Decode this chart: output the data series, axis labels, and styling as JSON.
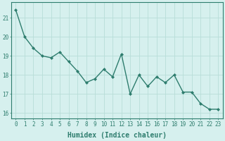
{
  "xlabel": "Humidex (Indice chaleur)",
  "ylabel": "",
  "x_values": [
    0,
    1,
    2,
    3,
    4,
    5,
    6,
    7,
    8,
    9,
    10,
    11,
    12,
    13,
    14,
    15,
    16,
    17,
    18,
    19,
    20,
    21,
    22,
    23
  ],
  "y_values": [
    21.4,
    20.0,
    19.4,
    19.0,
    18.9,
    19.2,
    18.7,
    18.2,
    17.6,
    17.8,
    18.3,
    17.9,
    19.1,
    17.0,
    18.0,
    17.4,
    17.9,
    17.6,
    18.0,
    17.1,
    17.1,
    16.5,
    16.2,
    16.2
  ],
  "line_color": "#2e7d6e",
  "marker": "D",
  "marker_size": 2.0,
  "bg_color": "#d6f0ee",
  "grid_color": "#b8ddd8",
  "tick_color": "#2e7d6e",
  "label_color": "#2e7d6e",
  "ylim": [
    15.7,
    21.8
  ],
  "yticks": [
    16,
    17,
    18,
    19,
    20,
    21
  ],
  "xticks": [
    0,
    1,
    2,
    3,
    4,
    5,
    6,
    7,
    8,
    9,
    10,
    11,
    12,
    13,
    14,
    15,
    16,
    17,
    18,
    19,
    20,
    21,
    22,
    23
  ],
  "linewidth": 1.0,
  "tick_fontsize": 5.5,
  "xlabel_fontsize": 7.0
}
